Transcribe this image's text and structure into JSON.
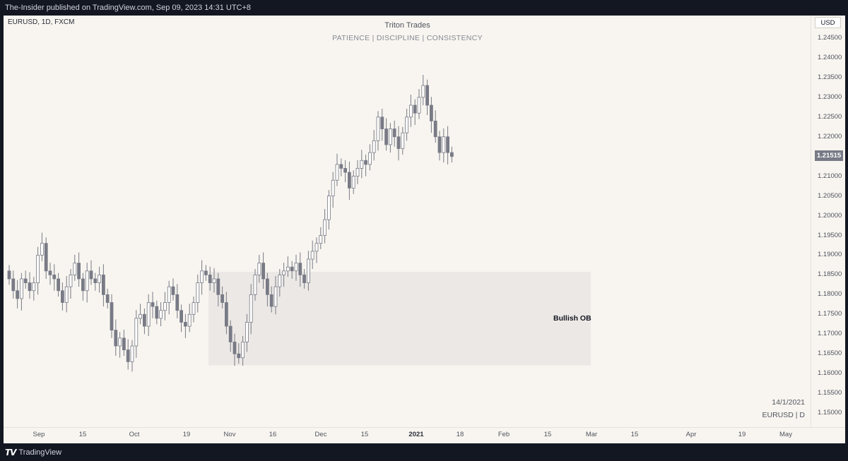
{
  "header": {
    "publish_text": "The-Insider published on TradingView.com, Sep 09, 2023 14:31 UTC+8"
  },
  "chart": {
    "legend": "EURUSD, 1D, FXCM",
    "title": "Triton Trades",
    "subtitle": "PATIENCE | DISCIPLINE | CONSISTENCY",
    "currency": "USD",
    "last_price": "1.21515",
    "zone_label": "Bullish OB",
    "date_label": "14/1/2021",
    "symbol_label": "EURUSD | D",
    "price_levels": [
      "1.24500",
      "1.24000",
      "1.23500",
      "1.23000",
      "1.22500",
      "1.22000",
      "1.21000",
      "1.20500",
      "1.20000",
      "1.19500",
      "1.19000",
      "1.18500",
      "1.18000",
      "1.17500",
      "1.17000",
      "1.16500",
      "1.16000",
      "1.15500",
      "1.15000"
    ],
    "time_labels": [
      {
        "text": "Sep",
        "bold": false
      },
      {
        "text": "15",
        "bold": false
      },
      {
        "text": "Oct",
        "bold": false
      },
      {
        "text": "19",
        "bold": false
      },
      {
        "text": "Nov",
        "bold": false
      },
      {
        "text": "16",
        "bold": false
      },
      {
        "text": "Dec",
        "bold": false
      },
      {
        "text": "15",
        "bold": false
      },
      {
        "text": "2021",
        "bold": true
      },
      {
        "text": "18",
        "bold": false
      },
      {
        "text": "Feb",
        "bold": false
      },
      {
        "text": "15",
        "bold": false
      },
      {
        "text": "Mar",
        "bold": false
      },
      {
        "text": "15",
        "bold": false
      },
      {
        "text": "Apr",
        "bold": false
      },
      {
        "text": "19",
        "bold": false
      },
      {
        "text": "May",
        "bold": false
      }
    ]
  },
  "footer": {
    "brand": "TradingView"
  },
  "colors": {
    "background": "#f8f5f0",
    "bull_body": "#ffffff",
    "bear_body": "#787b86",
    "wick": "#787b86",
    "zone": "#ece8e5",
    "frame": "#131722"
  }
}
